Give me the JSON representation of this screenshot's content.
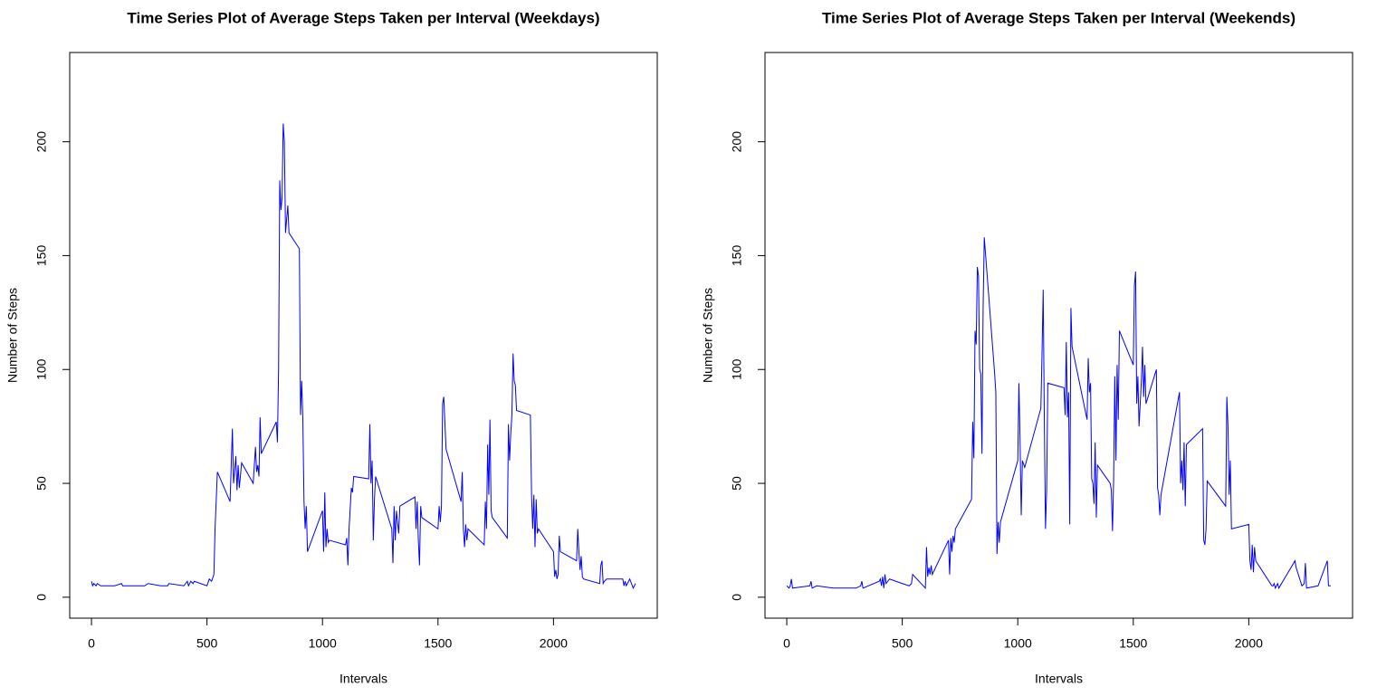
{
  "chart_data": [
    {
      "type": "line",
      "title": "Time Series Plot of Average Steps Taken per Interval (Weekdays)",
      "xlabel": "Intervals",
      "ylabel": "Number of Steps",
      "color": "#0000ff",
      "xlim": [
        -94.2,
        2449.2
      ],
      "ylim": [
        -9.2,
        239.2
      ],
      "xticks": [
        0,
        500,
        1000,
        1500,
        2000
      ],
      "yticks": [
        0,
        50,
        100,
        150,
        200
      ],
      "x": [
        0,
        5,
        10,
        20,
        25,
        40,
        100,
        130,
        135,
        200,
        230,
        245,
        300,
        330,
        335,
        400,
        415,
        420,
        430,
        440,
        445,
        500,
        510,
        520,
        530,
        535,
        545,
        600,
        610,
        615,
        625,
        630,
        635,
        640,
        650,
        700,
        710,
        715,
        720,
        725,
        730,
        735,
        800,
        805,
        810,
        815,
        820,
        825,
        830,
        835,
        840,
        850,
        855,
        900,
        905,
        910,
        915,
        920,
        925,
        930,
        935,
        1000,
        1005,
        1010,
        1015,
        1020,
        1025,
        1030,
        1100,
        1105,
        1110,
        1115,
        1125,
        1130,
        1135,
        1200,
        1205,
        1210,
        1215,
        1220,
        1225,
        1230,
        1300,
        1305,
        1310,
        1315,
        1320,
        1330,
        1335,
        1400,
        1405,
        1410,
        1415,
        1420,
        1425,
        1430,
        1500,
        1505,
        1510,
        1515,
        1520,
        1525,
        1535,
        1600,
        1605,
        1610,
        1615,
        1620,
        1625,
        1630,
        1700,
        1705,
        1710,
        1715,
        1720,
        1725,
        1730,
        1735,
        1800,
        1805,
        1810,
        1815,
        1820,
        1825,
        1830,
        1835,
        1840,
        1900,
        1905,
        1910,
        1915,
        1920,
        1925,
        1930,
        1935,
        2000,
        2005,
        2010,
        2015,
        2020,
        2025,
        2030,
        2100,
        2105,
        2110,
        2115,
        2120,
        2125,
        2130,
        2200,
        2205,
        2210,
        2215,
        2220,
        2230,
        2300,
        2305,
        2310,
        2315,
        2330,
        2345,
        2355
      ],
      "values": [
        7,
        5,
        6,
        5,
        6,
        5,
        5,
        6,
        5,
        5,
        5,
        6,
        5,
        5,
        6,
        5,
        7,
        5,
        7,
        6,
        7,
        5,
        8,
        7,
        10,
        30,
        55,
        42,
        74,
        50,
        62,
        47,
        58,
        48,
        59,
        50,
        66,
        55,
        58,
        53,
        79,
        63,
        77,
        68,
        100,
        183,
        170,
        175,
        208,
        200,
        160,
        172,
        160,
        153,
        80,
        95,
        78,
        42,
        30,
        40,
        20,
        38,
        20,
        46,
        22,
        30,
        24,
        25,
        23,
        26,
        14,
        30,
        48,
        46,
        53,
        52,
        76,
        50,
        60,
        25,
        43,
        53,
        30,
        15,
        40,
        25,
        38,
        28,
        40,
        44,
        30,
        42,
        25,
        14,
        40,
        35,
        30,
        40,
        33,
        40,
        85,
        88,
        65,
        42,
        55,
        30,
        22,
        32,
        25,
        30,
        23,
        42,
        30,
        67,
        45,
        78,
        38,
        35,
        26,
        76,
        60,
        72,
        80,
        107,
        95,
        93,
        82,
        80,
        45,
        30,
        45,
        22,
        43,
        28,
        30,
        20,
        9,
        12,
        8,
        10,
        27,
        20,
        16,
        30,
        20,
        12,
        18,
        9,
        8,
        6,
        14,
        16,
        6,
        7,
        8,
        8,
        5,
        7,
        5,
        8,
        4,
        6
      ]
    },
    {
      "type": "line",
      "title": "Time Series Plot of Average Steps Taken per Interval (Weekends)",
      "xlabel": "Intervals",
      "ylabel": "Number of Steps",
      "color": "#0000ff",
      "xlim": [
        -94.2,
        2449.2
      ],
      "ylim": [
        -9.2,
        239.2
      ],
      "xticks": [
        0,
        500,
        1000,
        1500,
        2000
      ],
      "yticks": [
        0,
        50,
        100,
        150,
        200
      ],
      "x": [
        0,
        10,
        15,
        20,
        25,
        100,
        105,
        110,
        130,
        200,
        300,
        320,
        325,
        330,
        400,
        405,
        410,
        415,
        420,
        425,
        430,
        445,
        500,
        530,
        540,
        545,
        600,
        605,
        610,
        615,
        620,
        625,
        630,
        700,
        705,
        710,
        715,
        720,
        725,
        730,
        800,
        805,
        810,
        815,
        820,
        825,
        830,
        835,
        840,
        845,
        850,
        855,
        900,
        905,
        910,
        915,
        920,
        925,
        1000,
        1005,
        1010,
        1015,
        1020,
        1030,
        1100,
        1105,
        1110,
        1115,
        1120,
        1125,
        1130,
        1200,
        1205,
        1210,
        1215,
        1220,
        1225,
        1230,
        1235,
        1300,
        1305,
        1310,
        1315,
        1320,
        1325,
        1330,
        1335,
        1340,
        1345,
        1400,
        1405,
        1410,
        1415,
        1420,
        1425,
        1430,
        1435,
        1440,
        1500,
        1505,
        1510,
        1515,
        1520,
        1525,
        1530,
        1535,
        1540,
        1545,
        1550,
        1555,
        1600,
        1605,
        1610,
        1615,
        1620,
        1700,
        1705,
        1710,
        1715,
        1720,
        1725,
        1730,
        1800,
        1805,
        1810,
        1815,
        1820,
        1900,
        1905,
        1910,
        1915,
        1920,
        1925,
        2000,
        2005,
        2010,
        2015,
        2020,
        2025,
        2030,
        2100,
        2105,
        2110,
        2115,
        2120,
        2125,
        2130,
        2200,
        2205,
        2230,
        2240,
        2245,
        2250,
        2300,
        2340,
        2345,
        2355
      ],
      "values": [
        5,
        4,
        5,
        8,
        4,
        5,
        7,
        4,
        5,
        4,
        4,
        5,
        7,
        4,
        7,
        8,
        5,
        9,
        4,
        10,
        6,
        8,
        6,
        5,
        6,
        10,
        4,
        22,
        9,
        13,
        10,
        14,
        10,
        25,
        10,
        26,
        20,
        27,
        24,
        30,
        43,
        77,
        61,
        117,
        111,
        145,
        141,
        100,
        98,
        63,
        127,
        158,
        98,
        90,
        19,
        33,
        24,
        33,
        60,
        94,
        68,
        36,
        60,
        57,
        83,
        107,
        135,
        78,
        30,
        47,
        94,
        92,
        80,
        112,
        79,
        90,
        32,
        127,
        110,
        78,
        105,
        90,
        94,
        52,
        50,
        41,
        68,
        35,
        58,
        50,
        47,
        29,
        52,
        97,
        60,
        102,
        78,
        117,
        102,
        137,
        143,
        85,
        97,
        75,
        85,
        95,
        110,
        88,
        102,
        85,
        100,
        48,
        45,
        36,
        45,
        90,
        50,
        60,
        47,
        68,
        40,
        67,
        74,
        25,
        23,
        30,
        51,
        40,
        88,
        75,
        45,
        60,
        30,
        32,
        16,
        12,
        23,
        11,
        22,
        16,
        5,
        5,
        6,
        4,
        5,
        6,
        4,
        16,
        13,
        5,
        6,
        15,
        4,
        5,
        16,
        5,
        5
      ]
    }
  ]
}
